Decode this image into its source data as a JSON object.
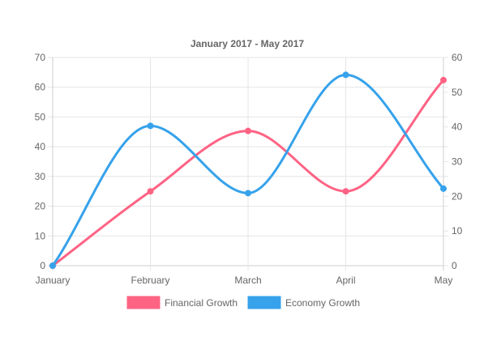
{
  "chart_data": {
    "type": "line",
    "title": "January 2017 - May 2017",
    "categories": [
      "January",
      "February",
      "March",
      "April",
      "May"
    ],
    "y_left": {
      "ylim": [
        0,
        70
      ],
      "ticks": [
        "0",
        "10",
        "20",
        "30",
        "40",
        "50",
        "60",
        "70"
      ]
    },
    "y_right": {
      "ylim": [
        0,
        60
      ],
      "ticks": [
        "0",
        "10",
        "20",
        "30",
        "40",
        "50",
        "60"
      ]
    },
    "series": [
      {
        "name": "Financial Growth",
        "axis": "left",
        "color": "#ff6384",
        "values": [
          0,
          25,
          45.3,
          25,
          62.4
        ]
      },
      {
        "name": "Economy Growth",
        "axis": "right",
        "color": "#36a2eb",
        "values": [
          0,
          40.3,
          20.9,
          55,
          22.2
        ]
      }
    ],
    "grid": true,
    "legend_position": "bottom"
  }
}
